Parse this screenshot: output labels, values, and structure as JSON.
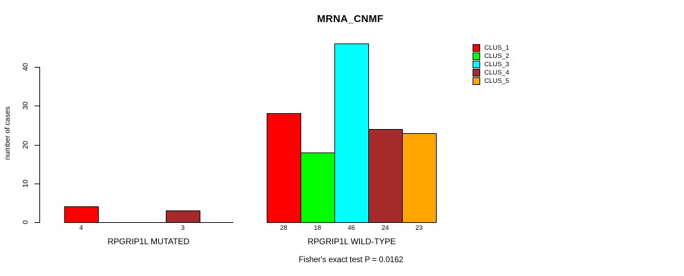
{
  "chart_data": {
    "type": "bar",
    "title": "MRNA_CNMF",
    "ylabel": "number of cases",
    "yticks": [
      0,
      10,
      20,
      30,
      40
    ],
    "ylim": [
      0,
      46
    ],
    "grid": false,
    "legend_position": "top-right",
    "series": [
      {
        "name": "CLUS_1",
        "color": "#FF0000"
      },
      {
        "name": "CLUS_2",
        "color": "#00FF00"
      },
      {
        "name": "CLUS_3",
        "color": "#00FFFF"
      },
      {
        "name": "CLUS_4",
        "color": "#A52A2A"
      },
      {
        "name": "CLUS_5",
        "color": "#FFA500"
      }
    ],
    "groups": [
      {
        "label": "RPGRIP1L MUTATED",
        "values": [
          4,
          0,
          0,
          3,
          0
        ],
        "bar_labels": [
          "4",
          "",
          "",
          "3",
          ""
        ]
      },
      {
        "label": "RPGRIP1L WILD-TYPE",
        "values": [
          28,
          18,
          46,
          24,
          23
        ],
        "bar_labels": [
          "28",
          "18",
          "46",
          "24",
          "23"
        ]
      }
    ],
    "footnote": "Fisher's exact test P = 0.0162"
  }
}
